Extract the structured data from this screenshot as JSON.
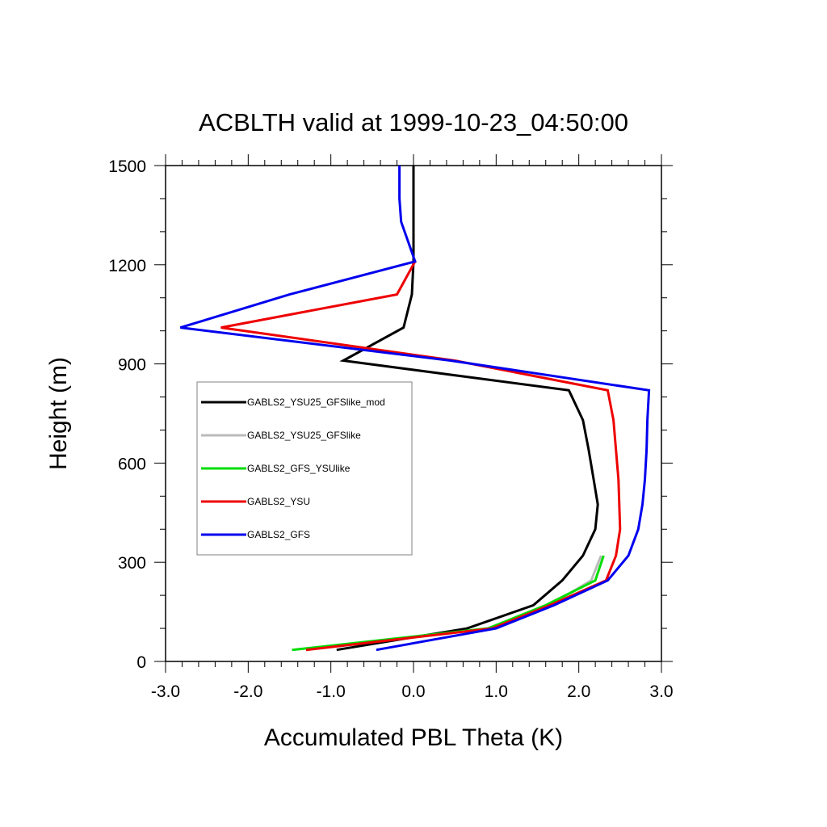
{
  "chart_data": {
    "type": "line",
    "title": "ACBLTH valid at 1999-10-23_04:50:00",
    "xlabel": "Accumulated PBL Theta (K)",
    "ylabel": "Height (m)",
    "xlim": [
      -3.0,
      3.0
    ],
    "ylim": [
      0,
      1500
    ],
    "xticks": [
      "-3.0",
      "-2.0",
      "-1.0",
      "0.0",
      "1.0",
      "2.0",
      "3.0"
    ],
    "yticks": [
      "0",
      "300",
      "600",
      "900",
      "1200",
      "1500"
    ],
    "xtick_values": [
      -3,
      -2,
      -1,
      0,
      1,
      2,
      3
    ],
    "ytick_values": [
      0,
      300,
      600,
      900,
      1200,
      1500
    ],
    "grid": false,
    "legend_position": "upper-left",
    "series": [
      {
        "name": "GABLS2_YSU25_GFSlike_mod",
        "color": "#000000",
        "points": [
          [
            -0.93,
            35
          ],
          [
            0.65,
            100
          ],
          [
            1.45,
            170
          ],
          [
            1.8,
            245
          ],
          [
            2.05,
            320
          ],
          [
            2.2,
            400
          ],
          [
            2.23,
            475
          ],
          [
            2.18,
            550
          ],
          [
            2.12,
            640
          ],
          [
            2.05,
            730
          ],
          [
            1.88,
            820
          ],
          [
            -0.85,
            910
          ],
          [
            -0.12,
            1010
          ],
          [
            -0.02,
            1110
          ],
          [
            0.0,
            1210
          ],
          [
            0.0,
            1500
          ]
        ]
      },
      {
        "name": "GABLS2_YSU25_GFSlike",
        "color": "#bbbbbb",
        "points": [
          [
            -1.3,
            35
          ],
          [
            0.9,
            100
          ],
          [
            1.65,
            170
          ],
          [
            2.15,
            245
          ],
          [
            2.27,
            320
          ]
        ]
      },
      {
        "name": "GABLS2_GFS_YSUlike",
        "color": "#00dd00",
        "points": [
          [
            -1.47,
            35
          ],
          [
            0.9,
            100
          ],
          [
            1.6,
            170
          ],
          [
            2.2,
            245
          ],
          [
            2.3,
            320
          ]
        ]
      },
      {
        "name": "GABLS2_YSU",
        "color": "#ee0000",
        "points": [
          [
            -1.3,
            35
          ],
          [
            0.95,
            100
          ],
          [
            1.65,
            170
          ],
          [
            2.33,
            245
          ],
          [
            2.45,
            320
          ],
          [
            2.5,
            400
          ],
          [
            2.48,
            550
          ],
          [
            2.45,
            640
          ],
          [
            2.42,
            730
          ],
          [
            2.35,
            820
          ],
          [
            0.5,
            910
          ],
          [
            -2.33,
            1010
          ],
          [
            -0.2,
            1110
          ],
          [
            0.02,
            1210
          ]
        ]
      },
      {
        "name": "GABLS2_GFS",
        "color": "#0000ee",
        "points": [
          [
            -0.45,
            35
          ],
          [
            1.0,
            100
          ],
          [
            1.7,
            170
          ],
          [
            2.35,
            245
          ],
          [
            2.6,
            320
          ],
          [
            2.72,
            400
          ],
          [
            2.77,
            475
          ],
          [
            2.8,
            550
          ],
          [
            2.82,
            640
          ],
          [
            2.83,
            730
          ],
          [
            2.85,
            820
          ],
          [
            0.45,
            910
          ],
          [
            -2.82,
            1010
          ],
          [
            -1.5,
            1110
          ],
          [
            0.02,
            1210
          ],
          [
            -0.15,
            1330
          ],
          [
            -0.17,
            1400
          ],
          [
            -0.17,
            1500
          ]
        ]
      }
    ]
  }
}
